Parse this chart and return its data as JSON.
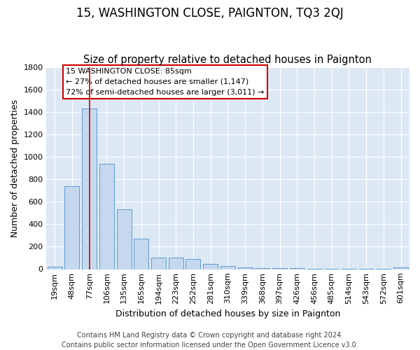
{
  "title": "15, WASHINGTON CLOSE, PAIGNTON, TQ3 2QJ",
  "subtitle": "Size of property relative to detached houses in Paignton",
  "xlabel": "Distribution of detached houses by size in Paignton",
  "ylabel": "Number of detached properties",
  "footer_line1": "Contains HM Land Registry data © Crown copyright and database right 2024.",
  "footer_line2": "Contains public sector information licensed under the Open Government Licence v3.0.",
  "categories": [
    "19sqm",
    "48sqm",
    "77sqm",
    "106sqm",
    "135sqm",
    "165sqm",
    "194sqm",
    "223sqm",
    "252sqm",
    "281sqm",
    "310sqm",
    "339sqm",
    "368sqm",
    "397sqm",
    "426sqm",
    "456sqm",
    "485sqm",
    "514sqm",
    "543sqm",
    "572sqm",
    "601sqm"
  ],
  "values": [
    20,
    740,
    1430,
    940,
    530,
    270,
    105,
    105,
    90,
    45,
    25,
    15,
    10,
    8,
    8,
    5,
    5,
    5,
    5,
    5,
    15
  ],
  "bar_color": "#c5d8ed",
  "bar_edge_color": "#5b9bd5",
  "vline_x_index": 2,
  "vline_color": "#cc0000",
  "annotation_text": "15 WASHINGTON CLOSE: 85sqm\n← 27% of detached houses are smaller (1,147)\n72% of semi-detached houses are larger (3,011) →",
  "annotation_box_facecolor": "#ffffff",
  "annotation_box_edgecolor": "#cc0000",
  "ylim": [
    0,
    1800
  ],
  "yticks": [
    0,
    200,
    400,
    600,
    800,
    1000,
    1200,
    1400,
    1600,
    1800
  ],
  "fig_bg_color": "#ffffff",
  "plot_bg_color": "#dde8f5",
  "grid_color": "#ffffff",
  "title_fontsize": 12,
  "subtitle_fontsize": 10.5,
  "xlabel_fontsize": 9,
  "ylabel_fontsize": 9,
  "tick_fontsize": 8,
  "footer_fontsize": 7
}
